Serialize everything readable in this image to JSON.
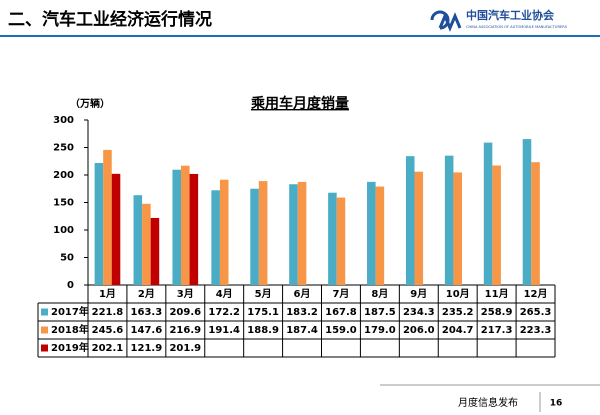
{
  "header": {
    "title": "二、汽车工业经济运行情况",
    "logo_text": "中国汽车工业协会",
    "logo_subtext": "CHINA ASSOCIATION OF AUTOMOBILE MANUFACTURERS"
  },
  "footer": {
    "text": "月度信息发布",
    "page": "16"
  },
  "chart_data": {
    "type": "bar",
    "title": "乘用车月度销量",
    "y_label": "（万辆）",
    "categories": [
      "1月",
      "2月",
      "3月",
      "4月",
      "5月",
      "6月",
      "7月",
      "8月",
      "9月",
      "10月",
      "11月",
      "12月"
    ],
    "series": [
      {
        "name": "2017年",
        "color": "#4bacc6",
        "values": [
          221.8,
          163.3,
          209.6,
          172.2,
          175.1,
          183.2,
          167.8,
          187.5,
          234.3,
          235.2,
          258.9,
          265.3
        ]
      },
      {
        "name": "2018年",
        "color": "#f79646",
        "values": [
          245.6,
          147.6,
          216.9,
          191.4,
          188.9,
          187.4,
          159.0,
          179.0,
          206.0,
          204.7,
          217.3,
          223.3
        ]
      },
      {
        "name": "2019年",
        "color": "#c00000",
        "values": [
          202.1,
          121.9,
          201.9,
          null,
          null,
          null,
          null,
          null,
          null,
          null,
          null,
          null
        ]
      }
    ],
    "ylim": [
      0,
      300
    ],
    "yticks": [
      0,
      50,
      100,
      150,
      200,
      250,
      300
    ],
    "grid": false,
    "data_table": true
  }
}
